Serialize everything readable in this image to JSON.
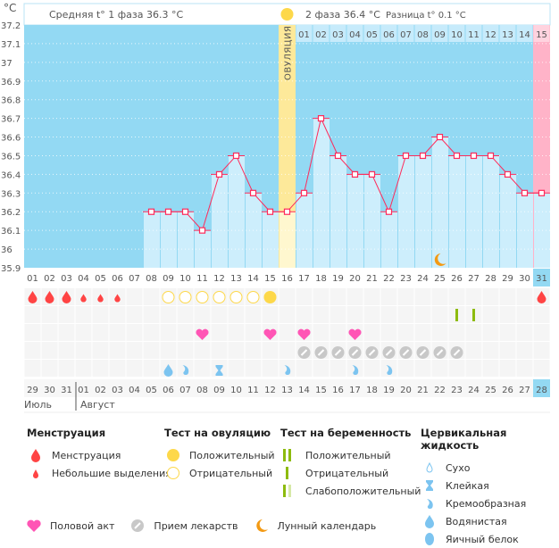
{
  "header": {
    "unit": "°C",
    "phase1": "Средняя t° 1 фаза 36.3 °C",
    "phase2": "2 фаза 36.4 °C",
    "difference": "Разница t° 0.1 °C",
    "ovulation_label": "ОВУЛЯЦИЯ",
    "phase2_days": [
      "01",
      "02",
      "03",
      "04",
      "05",
      "06",
      "07",
      "08",
      "09",
      "10",
      "11",
      "12",
      "13",
      "14",
      "15"
    ]
  },
  "chart_data": {
    "type": "line",
    "ylim": [
      35.9,
      37.2
    ],
    "y_ticks": [
      "37.2",
      "37.1",
      "37",
      "36.9",
      "36.8",
      "36.7",
      "36.6",
      "36.5",
      "36.4",
      "36.3",
      "36.2",
      "36.1",
      "36",
      "35.9"
    ],
    "grid": true,
    "x": [
      1,
      2,
      3,
      4,
      5,
      6,
      7,
      8,
      9,
      10,
      11,
      12,
      13,
      14,
      15,
      16,
      17,
      18,
      19,
      20,
      21,
      22,
      23,
      24,
      25,
      26,
      27,
      28,
      29,
      30,
      31
    ],
    "x_labels": [
      "01",
      "02",
      "03",
      "04",
      "05",
      "06",
      "07",
      "08",
      "09",
      "10",
      "11",
      "12",
      "13",
      "14",
      "15",
      "16",
      "17",
      "18",
      "19",
      "20",
      "21",
      "22",
      "23",
      "24",
      "25",
      "26",
      "27",
      "28",
      "29",
      "30",
      "31"
    ],
    "y": [
      null,
      null,
      null,
      null,
      null,
      null,
      null,
      36.2,
      36.2,
      36.2,
      36.1,
      36.4,
      36.5,
      36.3,
      36.2,
      36.2,
      36.3,
      36.7,
      36.5,
      36.4,
      36.4,
      36.2,
      36.5,
      36.5,
      36.6,
      36.5,
      36.5,
      36.5,
      36.4,
      36.3,
      36.3
    ],
    "ovulation_day": 16,
    "current_day": 31,
    "moon_day": 25
  },
  "events": {
    "menstruation_heavy": [
      1,
      2,
      3,
      31
    ],
    "menstruation_light": [
      4,
      5,
      6
    ],
    "ovulation_test_negative": [
      9,
      10,
      11,
      12,
      13,
      14
    ],
    "ovulation_test_positive": [
      15
    ],
    "pregnancy_test_negative": [
      26,
      27
    ],
    "intercourse": [
      11,
      15,
      17,
      20
    ],
    "medication": [
      17,
      18,
      19,
      20,
      21,
      22,
      23,
      24,
      25,
      26
    ],
    "fluid_watery": [
      9
    ],
    "fluid_creamy": [
      10,
      16,
      20,
      22
    ],
    "fluid_sticky": [
      12
    ]
  },
  "calendar": {
    "dates": [
      "29",
      "30",
      "31",
      "01",
      "02",
      "03",
      "04",
      "05",
      "06",
      "07",
      "08",
      "09",
      "10",
      "11",
      "12",
      "13",
      "14",
      "15",
      "16",
      "17",
      "18",
      "19",
      "20",
      "21",
      "22",
      "23",
      "24",
      "25",
      "26",
      "27",
      "28"
    ],
    "weekend_days": [
      4,
      5,
      11,
      12,
      18,
      19,
      25,
      26
    ],
    "months": [
      "Июль",
      "Август"
    ]
  },
  "colors": {
    "chart_bg": "#93d9f3",
    "bar": "#cdeefc",
    "line": "#ff2a5a",
    "ovulation": "#fde99a",
    "current_day": "#ffb3c8",
    "menstruation": "#ff4444",
    "ovulation_test": "#fdd84a",
    "pregnancy_test": "#8dbb0e",
    "heart": "#ff55b5",
    "pill": "#c8c8c8",
    "fluid": "#7cc4f0",
    "moon": "#f39a14"
  },
  "legend": {
    "menstruation": {
      "title": "Менструация",
      "items": [
        "Менструация",
        "Небольшие выделения"
      ]
    },
    "ovulation_test": {
      "title": "Тест на овуляцию",
      "items": [
        "Положительный",
        "Отрицательный"
      ]
    },
    "pregnancy_test": {
      "title": "Тест на беременность",
      "items": [
        "Положительный",
        "Отрицательный",
        "Слабоположительный"
      ]
    },
    "cervical_fluid": {
      "title": "Цервикальная жидкость",
      "items": [
        "Сухо",
        "Клейкая",
        "Кремообразная",
        "Водянистая",
        "Яичный белок"
      ]
    },
    "other": [
      "Половой акт",
      "Прием лекарств",
      "Лунный календарь"
    ]
  }
}
